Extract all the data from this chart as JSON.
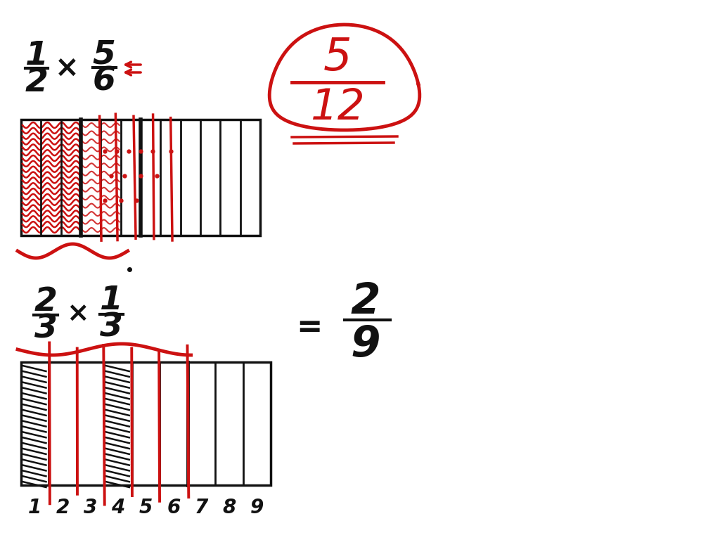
{
  "bg_color": "#ffffff",
  "black": "#111111",
  "red": "#cc1111",
  "top_frac1_num": "1",
  "top_frac1_den": "2",
  "top_frac2_num": "5",
  "top_frac2_den": "6",
  "result1_num": "5",
  "result1_den": "12",
  "bot_frac1_num": "2",
  "bot_frac1_den": "3",
  "bot_frac2_num": "1",
  "bot_frac2_den": "3",
  "result2_num": "2",
  "result2_den": "9",
  "tick_labels": [
    "1",
    "2",
    "3",
    "4",
    "5",
    "6",
    "7",
    "8",
    "9"
  ]
}
